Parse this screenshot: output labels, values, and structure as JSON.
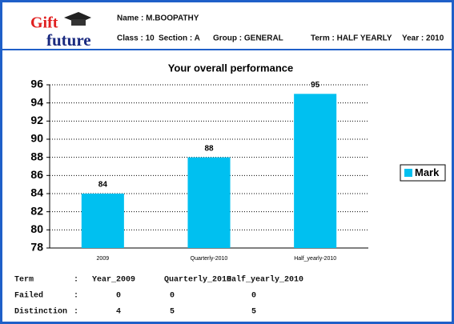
{
  "header": {
    "logo_top": "Gift",
    "logo_bottom": "future",
    "name": "Name : M.BOOPATHY",
    "class": "Class : 10",
    "section": "Section : A",
    "group": "Group : GENERAL",
    "term": "Term : HALF YEARLY",
    "year": "Year : 2010"
  },
  "chart_data": {
    "type": "bar",
    "title": "Your overall performance",
    "categories": [
      "2009",
      "Quarterly-2010",
      "Half_yearly-2010"
    ],
    "series": [
      {
        "name": "Mark",
        "color": "#00c0f0",
        "values": [
          84,
          88,
          95
        ]
      }
    ],
    "ylim": [
      78,
      96
    ],
    "yticks": [
      78,
      80,
      82,
      84,
      86,
      88,
      90,
      92,
      94,
      96
    ],
    "grid": true,
    "legend": "right"
  },
  "table": {
    "rows": [
      [
        "Term",
        ":",
        "Year_2009",
        "Quarterly_2010",
        "Half_yearly_2010"
      ],
      [
        "Failed",
        ":",
        "0",
        "0",
        "0"
      ],
      [
        "Distinction",
        ":",
        "4",
        "5",
        "5"
      ]
    ]
  }
}
